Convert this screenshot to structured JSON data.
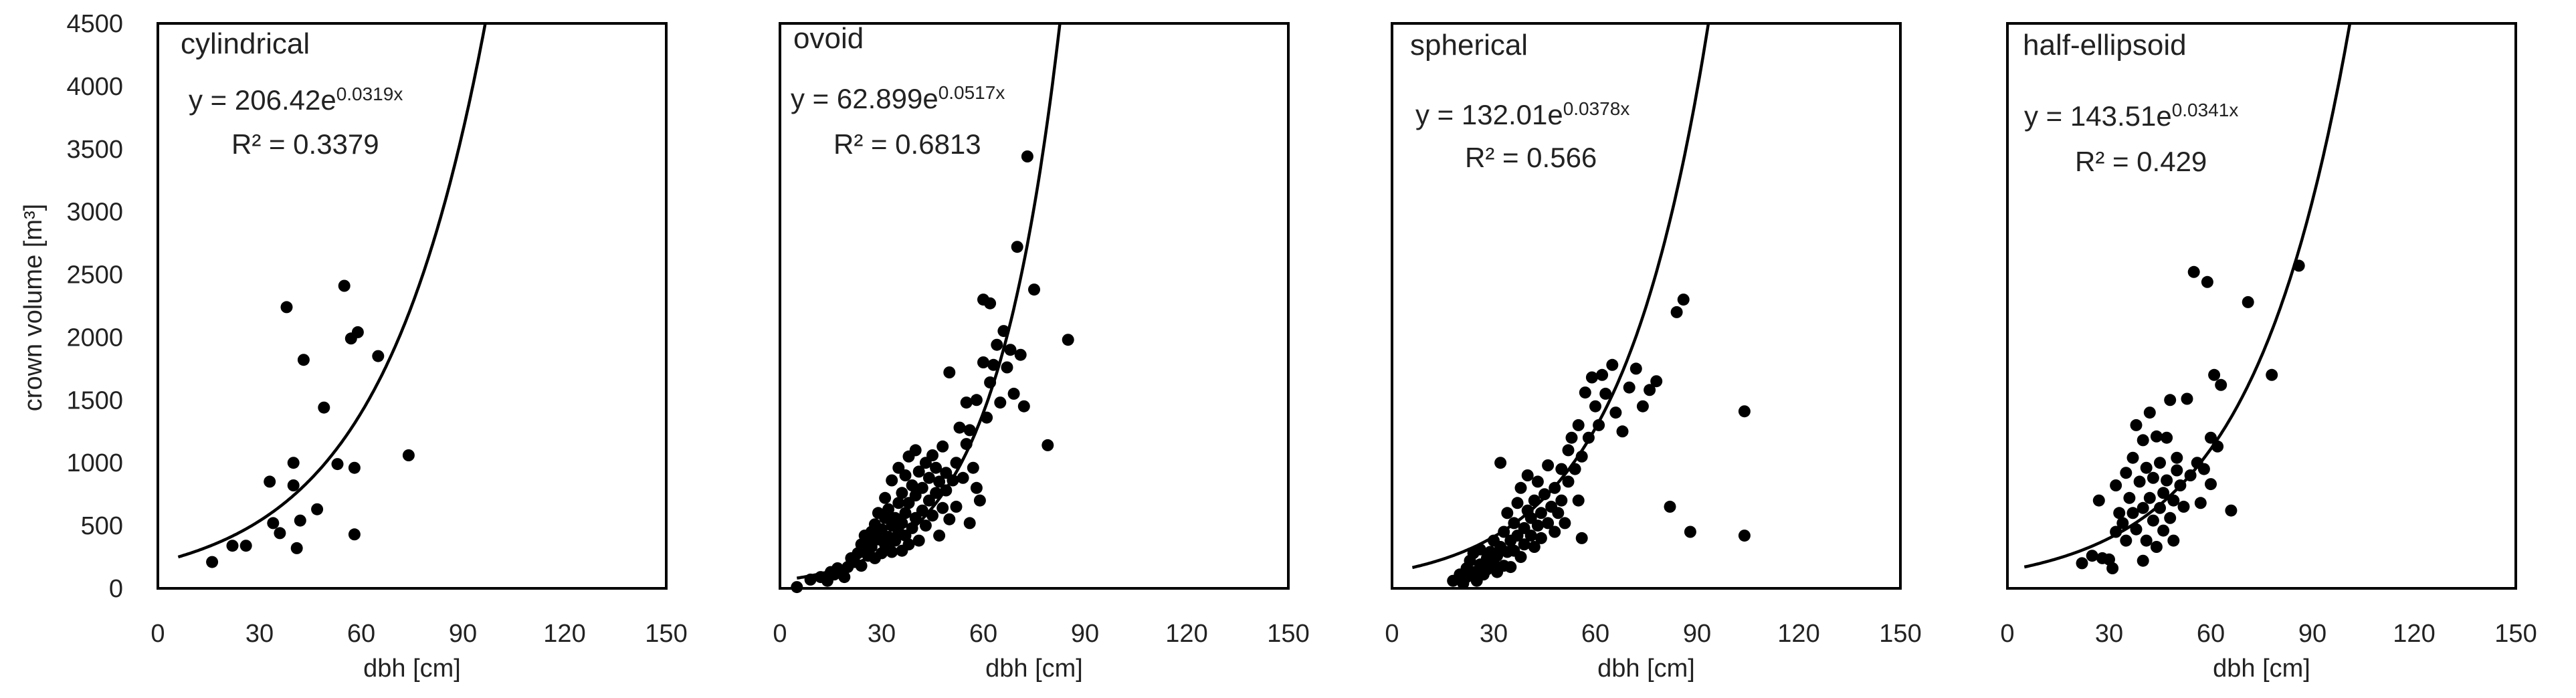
{
  "figure": {
    "ylabel": "crown volume [m³]"
  },
  "chart_data": [
    {
      "type": "scatter",
      "title": "cylindrical",
      "xlabel": "dbh [cm]",
      "ylabel": "crown volume [m³]",
      "xlim": [
        0,
        150
      ],
      "ylim": [
        0,
        4500
      ],
      "xticks": [
        "0",
        "30",
        "60",
        "90",
        "120",
        "150"
      ],
      "yticks": [
        "0",
        "500",
        "1000",
        "1500",
        "2000",
        "2500",
        "3000",
        "3500",
        "4000",
        "4500"
      ],
      "show_y_ticks": true,
      "equation": "y = 206.42e",
      "exponent": "0.0319x",
      "r2": "R² = 0.3379",
      "fit": {
        "a": 206.42,
        "b": 0.0319,
        "x_start": 6
      },
      "points": [
        [
          16,
          210
        ],
        [
          22,
          340
        ],
        [
          26,
          340
        ],
        [
          33,
          850
        ],
        [
          34,
          520
        ],
        [
          36,
          440
        ],
        [
          38,
          2240
        ],
        [
          40,
          1000
        ],
        [
          40,
          820
        ],
        [
          41,
          320
        ],
        [
          42,
          540
        ],
        [
          43,
          1820
        ],
        [
          47,
          630
        ],
        [
          49,
          1440
        ],
        [
          53,
          990
        ],
        [
          55,
          2410
        ],
        [
          57,
          1990
        ],
        [
          58,
          960
        ],
        [
          58,
          430
        ],
        [
          59,
          2040
        ],
        [
          65,
          1850
        ],
        [
          74,
          1060
        ]
      ]
    },
    {
      "type": "scatter",
      "title": "ovoid",
      "xlabel": "dbh [cm]",
      "ylabel": "",
      "xlim": [
        0,
        150
      ],
      "ylim": [
        0,
        4500
      ],
      "xticks": [
        "0",
        "30",
        "60",
        "90",
        "120",
        "150"
      ],
      "yticks": [],
      "show_y_ticks": false,
      "equation": "y = 62.899e",
      "exponent": "0.0517x",
      "r2": "R² = 0.6813",
      "fit": {
        "a": 62.899,
        "b": 0.0517,
        "x_start": 5
      },
      "points": [
        [
          5,
          10
        ],
        [
          9,
          70
        ],
        [
          12,
          90
        ],
        [
          14,
          60
        ],
        [
          15,
          130
        ],
        [
          16,
          110
        ],
        [
          17,
          160
        ],
        [
          18,
          140
        ],
        [
          19,
          90
        ],
        [
          20,
          170
        ],
        [
          21,
          240
        ],
        [
          22,
          210
        ],
        [
          23,
          280
        ],
        [
          24,
          180
        ],
        [
          24,
          350
        ],
        [
          25,
          300
        ],
        [
          25,
          420
        ],
        [
          26,
          260
        ],
        [
          26,
          380
        ],
        [
          27,
          450
        ],
        [
          27,
          330
        ],
        [
          28,
          510
        ],
        [
          28,
          240
        ],
        [
          29,
          390
        ],
        [
          29,
          600
        ],
        [
          30,
          280
        ],
        [
          30,
          470
        ],
        [
          31,
          350
        ],
        [
          31,
          560
        ],
        [
          31,
          720
        ],
        [
          32,
          410
        ],
        [
          32,
          630
        ],
        [
          33,
          290
        ],
        [
          33,
          500
        ],
        [
          33,
          860
        ],
        [
          34,
          380
        ],
        [
          34,
          560
        ],
        [
          35,
          450
        ],
        [
          35,
          680
        ],
        [
          35,
          960
        ],
        [
          36,
          300
        ],
        [
          36,
          520
        ],
        [
          36,
          760
        ],
        [
          37,
          420
        ],
        [
          37,
          600
        ],
        [
          37,
          900
        ],
        [
          38,
          350
        ],
        [
          38,
          680
        ],
        [
          38,
          1050
        ],
        [
          39,
          480
        ],
        [
          39,
          820
        ],
        [
          40,
          560
        ],
        [
          40,
          740
        ],
        [
          40,
          1100
        ],
        [
          41,
          380
        ],
        [
          41,
          930
        ],
        [
          42,
          620
        ],
        [
          42,
          800
        ],
        [
          43,
          500
        ],
        [
          43,
          1000
        ],
        [
          44,
          700
        ],
        [
          44,
          880
        ],
        [
          45,
          580
        ],
        [
          45,
          1060
        ],
        [
          46,
          760
        ],
        [
          46,
          960
        ],
        [
          47,
          420
        ],
        [
          47,
          850
        ],
        [
          48,
          640
        ],
        [
          48,
          1130
        ],
        [
          49,
          780
        ],
        [
          49,
          920
        ],
        [
          50,
          1720
        ],
        [
          50,
          550
        ],
        [
          51,
          860
        ],
        [
          52,
          1000
        ],
        [
          52,
          650
        ],
        [
          53,
          1280
        ],
        [
          54,
          880
        ],
        [
          55,
          1150
        ],
        [
          55,
          1480
        ],
        [
          56,
          520
        ],
        [
          56,
          1260
        ],
        [
          57,
          960
        ],
        [
          58,
          800
        ],
        [
          58,
          1500
        ],
        [
          59,
          700
        ],
        [
          60,
          1800
        ],
        [
          60,
          2300
        ],
        [
          61,
          1360
        ],
        [
          62,
          1640
        ],
        [
          62,
          2270
        ],
        [
          63,
          1780
        ],
        [
          64,
          1940
        ],
        [
          65,
          1480
        ],
        [
          66,
          2050
        ],
        [
          67,
          1760
        ],
        [
          68,
          1900
        ],
        [
          69,
          1550
        ],
        [
          70,
          2720
        ],
        [
          71,
          1860
        ],
        [
          72,
          1450
        ],
        [
          73,
          3440
        ],
        [
          75,
          2380
        ],
        [
          79,
          1140
        ],
        [
          85,
          1980
        ]
      ]
    },
    {
      "type": "scatter",
      "title": "spherical",
      "xlabel": "dbh [cm]",
      "ylabel": "",
      "xlim": [
        0,
        150
      ],
      "ylim": [
        0,
        4500
      ],
      "xticks": [
        "0",
        "30",
        "60",
        "90",
        "120",
        "150"
      ],
      "yticks": [],
      "show_y_ticks": false,
      "equation": "y = 132.01e",
      "exponent": "0.0378x",
      "r2": "R² = 0.566",
      "fit": {
        "a": 132.01,
        "b": 0.0378,
        "x_start": 6,
        "x_end": 104
      },
      "points": [
        [
          18,
          60
        ],
        [
          20,
          110
        ],
        [
          21,
          40
        ],
        [
          22,
          160
        ],
        [
          22,
          90
        ],
        [
          23,
          220
        ],
        [
          24,
          130
        ],
        [
          24,
          280
        ],
        [
          25,
          60
        ],
        [
          26,
          190
        ],
        [
          26,
          310
        ],
        [
          27,
          110
        ],
        [
          28,
          240
        ],
        [
          28,
          150
        ],
        [
          29,
          290
        ],
        [
          30,
          200
        ],
        [
          30,
          380
        ],
        [
          31,
          130
        ],
        [
          31,
          260
        ],
        [
          32,
          330
        ],
        [
          32,
          1000
        ],
        [
          33,
          180
        ],
        [
          33,
          450
        ],
        [
          34,
          290
        ],
        [
          34,
          600
        ],
        [
          35,
          380
        ],
        [
          35,
          170
        ],
        [
          36,
          520
        ],
        [
          36,
          300
        ],
        [
          37,
          420
        ],
        [
          37,
          680
        ],
        [
          38,
          250
        ],
        [
          38,
          800
        ],
        [
          39,
          480
        ],
        [
          39,
          350
        ],
        [
          40,
          620
        ],
        [
          40,
          900
        ],
        [
          41,
          420
        ],
        [
          41,
          560
        ],
        [
          42,
          700
        ],
        [
          42,
          330
        ],
        [
          43,
          850
        ],
        [
          43,
          500
        ],
        [
          44,
          600
        ],
        [
          44,
          400
        ],
        [
          45,
          750
        ],
        [
          46,
          520
        ],
        [
          46,
          980
        ],
        [
          47,
          650
        ],
        [
          48,
          450
        ],
        [
          48,
          800
        ],
        [
          49,
          600
        ],
        [
          50,
          950
        ],
        [
          50,
          700
        ],
        [
          51,
          520
        ],
        [
          52,
          1100
        ],
        [
          52,
          850
        ],
        [
          53,
          1200
        ],
        [
          54,
          950
        ],
        [
          55,
          700
        ],
        [
          55,
          1300
        ],
        [
          56,
          400
        ],
        [
          56,
          1050
        ],
        [
          57,
          1560
        ],
        [
          58,
          1200
        ],
        [
          59,
          1680
        ],
        [
          60,
          1450
        ],
        [
          61,
          1300
        ],
        [
          62,
          1700
        ],
        [
          63,
          1550
        ],
        [
          65,
          1780
        ],
        [
          66,
          1400
        ],
        [
          68,
          1250
        ],
        [
          70,
          1600
        ],
        [
          72,
          1750
        ],
        [
          74,
          1450
        ],
        [
          76,
          1580
        ],
        [
          78,
          1650
        ],
        [
          82,
          650
        ],
        [
          84,
          2200
        ],
        [
          86,
          2300
        ],
        [
          88,
          450
        ],
        [
          104,
          1410
        ],
        [
          104,
          420
        ]
      ]
    },
    {
      "type": "scatter",
      "title": "half-ellipsoid",
      "xlabel": "dbh [cm]",
      "ylabel": "",
      "xlim": [
        0,
        150
      ],
      "ylim": [
        0,
        4500
      ],
      "xticks": [
        "0",
        "30",
        "60",
        "90",
        "120",
        "150"
      ],
      "yticks": [],
      "show_y_ticks": false,
      "equation": "y = 143.51e",
      "exponent": "0.0341x",
      "r2": "R² = 0.429",
      "fit": {
        "a": 143.51,
        "b": 0.0341,
        "x_start": 5
      },
      "points": [
        [
          22,
          200
        ],
        [
          25,
          260
        ],
        [
          27,
          700
        ],
        [
          28,
          240
        ],
        [
          30,
          230
        ],
        [
          31,
          160
        ],
        [
          32,
          820
        ],
        [
          32,
          450
        ],
        [
          33,
          600
        ],
        [
          34,
          520
        ],
        [
          35,
          380
        ],
        [
          35,
          920
        ],
        [
          36,
          720
        ],
        [
          37,
          1040
        ],
        [
          37,
          600
        ],
        [
          38,
          1300
        ],
        [
          38,
          470
        ],
        [
          39,
          850
        ],
        [
          40,
          640
        ],
        [
          40,
          220
        ],
        [
          40,
          1180
        ],
        [
          41,
          960
        ],
        [
          41,
          380
        ],
        [
          42,
          1400
        ],
        [
          42,
          720
        ],
        [
          43,
          540
        ],
        [
          43,
          880
        ],
        [
          44,
          330
        ],
        [
          44,
          1210
        ],
        [
          45,
          640
        ],
        [
          45,
          1000
        ],
        [
          46,
          460
        ],
        [
          46,
          760
        ],
        [
          47,
          860
        ],
        [
          47,
          1200
        ],
        [
          48,
          560
        ],
        [
          48,
          1500
        ],
        [
          49,
          700
        ],
        [
          49,
          380
        ],
        [
          50,
          940
        ],
        [
          50,
          1040
        ],
        [
          51,
          820
        ],
        [
          52,
          650
        ],
        [
          53,
          1510
        ],
        [
          54,
          900
        ],
        [
          55,
          2520
        ],
        [
          56,
          1000
        ],
        [
          57,
          680
        ],
        [
          58,
          950
        ],
        [
          59,
          2440
        ],
        [
          60,
          830
        ],
        [
          60,
          1200
        ],
        [
          61,
          1700
        ],
        [
          62,
          1130
        ],
        [
          63,
          1620
        ],
        [
          66,
          620
        ],
        [
          71,
          2280
        ],
        [
          78,
          1700
        ],
        [
          86,
          2570
        ]
      ]
    }
  ]
}
